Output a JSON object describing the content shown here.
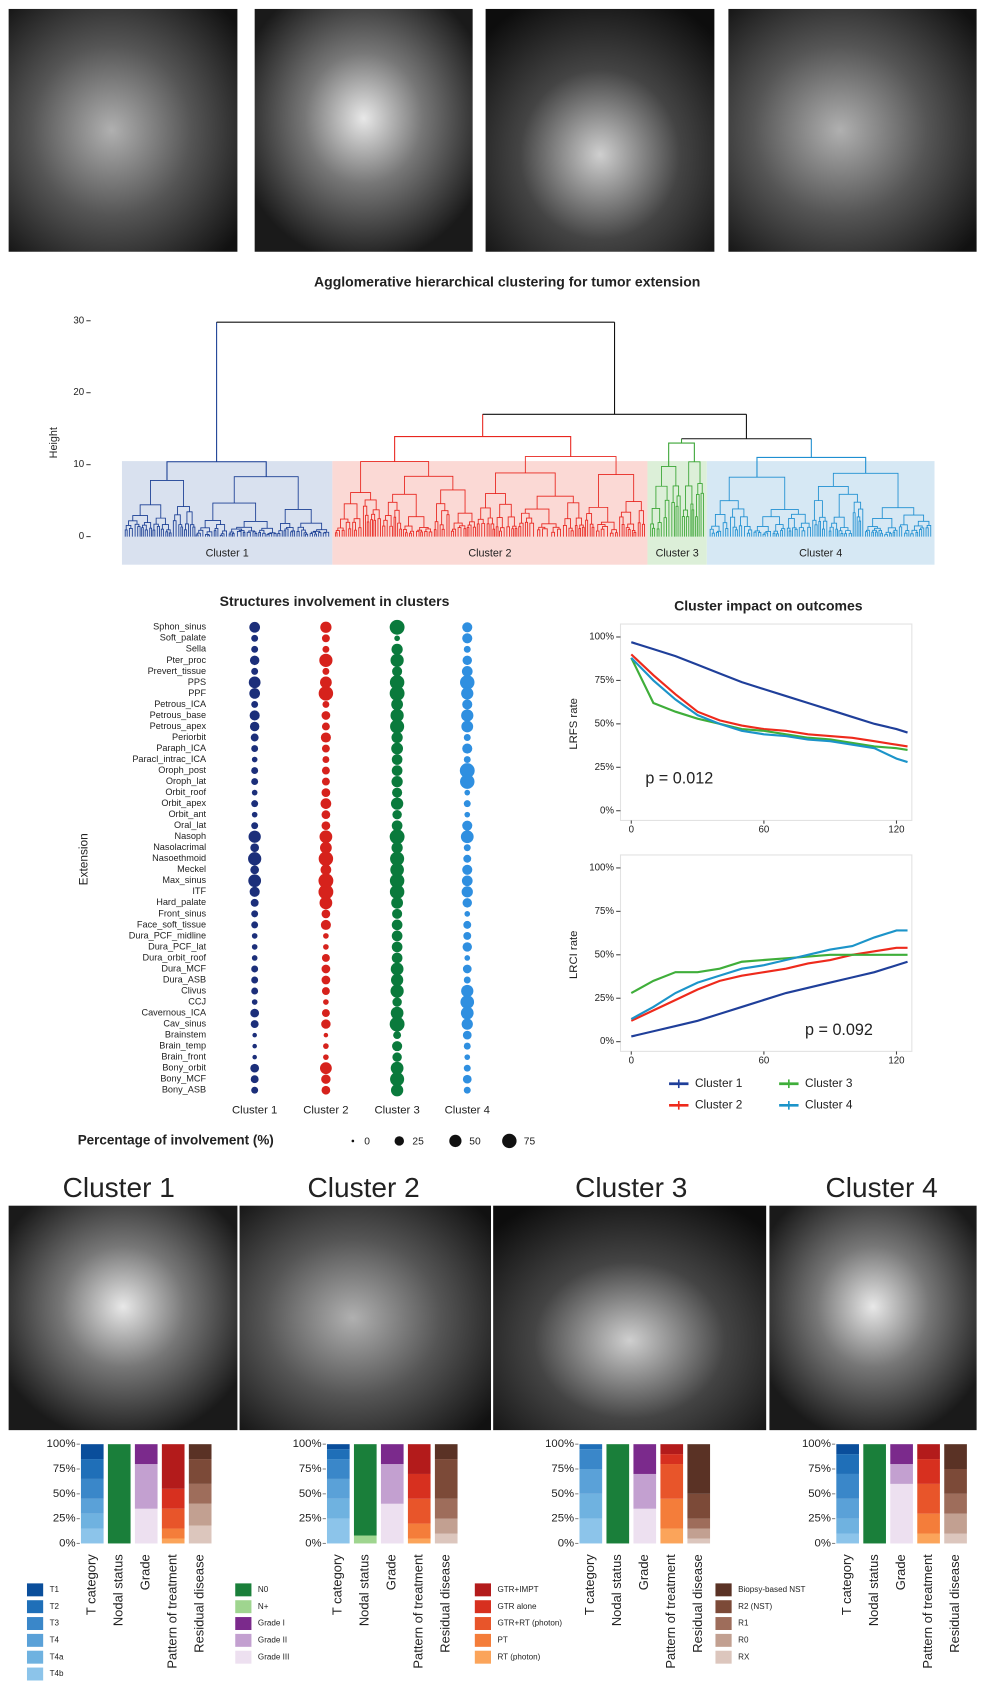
{
  "chart_data": [
    {
      "type": "dendrogram",
      "title": "Agglomerative hierarchical clustering for tumor extension",
      "ylabel": "Height",
      "ylim": [
        -2,
        32
      ],
      "yticks": [
        0,
        10,
        20,
        30
      ],
      "clusters": [
        {
          "name": "Cluster 1",
          "color": "#1b3f94",
          "band": "#d9e1ef",
          "height": 10.4
        },
        {
          "name": "Cluster 2",
          "color": "#e8261f",
          "band": "#fbd9d5",
          "height": 13.9
        },
        {
          "name": "Cluster 3",
          "color": "#3aa535",
          "band": "#dcefd8",
          "height": 13.0
        },
        {
          "name": "Cluster 4",
          "color": "#1f8fd1",
          "band": "#d6e8f4",
          "height": 11.0
        }
      ],
      "merges": [
        13.6,
        17.0,
        29.8
      ]
    },
    {
      "type": "dot",
      "title": "Structures involvement in clusters",
      "ylabel": "Extension",
      "categories": [
        "Sphon_sinus",
        "Soft_palate",
        "Sella",
        "Pter_proc",
        "Prevert_tissue",
        "PPS",
        "PPF",
        "Petrous_ICA",
        "Petrous_base",
        "Petrous_apex",
        "Periorbit",
        "Paraph_ICA",
        "Paracl_intrac_ICA",
        "Oroph_post",
        "Oroph_lat",
        "Orbit_roof",
        "Orbit_apex",
        "Orbit_ant",
        "Oral_lat",
        "Nasoph",
        "Nasolacrimal",
        "Nasoethmoid",
        "Meckel",
        "Max_sinus",
        "ITF",
        "Hard_palate",
        "Front_sinus",
        "Face_soft_tissue",
        "Dura_PCF_midline",
        "Dura_PCF_lat",
        "Dura_orbit_roof",
        "Dura_MCF",
        "Dura_ASB",
        "Clivus",
        "CCJ",
        "Cavernous_ICA",
        "Cav_sinus",
        "Brainstem",
        "Brain_temp",
        "Brain_front",
        "Bony_orbit",
        "Bony_MCF",
        "Bony_ASB"
      ],
      "series": [
        {
          "name": "Cluster 1",
          "color": "#1c2f7a",
          "values": [
            35,
            10,
            10,
            25,
            10,
            45,
            35,
            10,
            30,
            25,
            15,
            10,
            5,
            10,
            10,
            5,
            10,
            5,
            10,
            50,
            20,
            60,
            20,
            55,
            30,
            15,
            10,
            10,
            5,
            5,
            5,
            10,
            10,
            10,
            5,
            20,
            15,
            2,
            2,
            2,
            20,
            15,
            10
          ]
        },
        {
          "name": "Cluster 2",
          "color": "#d6221c",
          "values": [
            40,
            15,
            10,
            60,
            10,
            45,
            75,
            10,
            20,
            15,
            30,
            15,
            10,
            15,
            15,
            20,
            35,
            20,
            20,
            55,
            45,
            75,
            35,
            80,
            80,
            55,
            20,
            30,
            5,
            5,
            15,
            20,
            20,
            15,
            5,
            15,
            25,
            2,
            5,
            5,
            45,
            25,
            20
          ]
        },
        {
          "name": "Cluster 3",
          "color": "#0a7a3c",
          "values": [
            80,
            5,
            40,
            60,
            30,
            75,
            80,
            45,
            60,
            70,
            40,
            45,
            35,
            35,
            40,
            30,
            50,
            25,
            35,
            80,
            40,
            70,
            65,
            75,
            75,
            45,
            30,
            35,
            35,
            35,
            35,
            55,
            50,
            60,
            25,
            55,
            80,
            15,
            30,
            25,
            55,
            70,
            50
          ]
        },
        {
          "name": "Cluster 4",
          "color": "#2f8fe0",
          "values": [
            30,
            30,
            10,
            25,
            35,
            75,
            50,
            30,
            50,
            45,
            10,
            30,
            10,
            80,
            75,
            5,
            10,
            5,
            30,
            55,
            10,
            15,
            30,
            35,
            40,
            25,
            5,
            15,
            15,
            25,
            5,
            20,
            10,
            50,
            65,
            55,
            40,
            20,
            10,
            5,
            10,
            20,
            10
          ]
        }
      ],
      "size_legend": {
        "title": "Percentage of involvement (%)",
        "values": [
          0,
          25,
          50,
          75
        ]
      }
    },
    {
      "type": "line",
      "title": "Cluster impact on outcomes",
      "ylabel": "LRFS rate",
      "annotation": "p = 0.012",
      "x": [
        0,
        10,
        20,
        30,
        40,
        50,
        60,
        70,
        80,
        90,
        100,
        110,
        120,
        125
      ],
      "xlim": [
        0,
        125
      ],
      "xticks": [
        0,
        60,
        120
      ],
      "ylim": [
        0,
        100
      ],
      "yticks": [
        {
          "value": 0,
          "label": "0%"
        },
        {
          "value": 25,
          "label": "25%"
        },
        {
          "value": 50,
          "label": "50%"
        },
        {
          "value": 75,
          "label": "75%"
        },
        {
          "value": 100,
          "label": "100%"
        }
      ],
      "series": [
        {
          "color": "#1f3f9a",
          "values": [
            97,
            93,
            89,
            84,
            79,
            74,
            70,
            66,
            62,
            58,
            54,
            50,
            47,
            45
          ]
        },
        {
          "color": "#ee2a1c",
          "values": [
            90,
            78,
            67,
            57,
            52,
            49,
            47,
            46,
            44,
            43,
            42,
            40,
            38,
            37
          ]
        },
        {
          "color": "#3fae3a",
          "values": [
            88,
            62,
            57,
            53,
            50,
            47,
            46,
            44,
            42,
            41,
            39,
            37,
            36,
            35
          ]
        },
        {
          "color": "#1c94c9",
          "values": [
            88,
            75,
            64,
            55,
            50,
            46,
            44,
            43,
            41,
            40,
            38,
            36,
            30,
            28
          ]
        }
      ]
    },
    {
      "type": "line",
      "ylabel": "LRCI rate",
      "annotation": "p = 0.092",
      "legend": "bottom",
      "x": [
        0,
        10,
        20,
        30,
        40,
        50,
        60,
        70,
        80,
        90,
        100,
        110,
        120,
        125
      ],
      "xlim": [
        0,
        125
      ],
      "xticks": [
        0,
        60,
        120
      ],
      "ylim": [
        0,
        100
      ],
      "yticks": [
        {
          "value": 0,
          "label": "0%"
        },
        {
          "value": 25,
          "label": "25%"
        },
        {
          "value": 50,
          "label": "50%"
        },
        {
          "value": 75,
          "label": "75%"
        },
        {
          "value": 100,
          "label": "100%"
        }
      ],
      "series": [
        {
          "name": "Cluster 1",
          "color": "#1f3f9a",
          "values": [
            3,
            6,
            9,
            12,
            16,
            20,
            24,
            28,
            31,
            34,
            37,
            40,
            44,
            46
          ]
        },
        {
          "name": "Cluster 2",
          "color": "#ee2a1c",
          "values": [
            12,
            18,
            24,
            30,
            35,
            38,
            40,
            42,
            45,
            47,
            50,
            52,
            54,
            54
          ]
        },
        {
          "name": "Cluster 3",
          "color": "#3fae3a",
          "values": [
            28,
            35,
            40,
            40,
            42,
            46,
            47,
            48,
            49,
            50,
            50,
            50,
            50,
            50
          ]
        },
        {
          "name": "Cluster 4",
          "color": "#1c94c9",
          "values": [
            13,
            20,
            28,
            34,
            38,
            42,
            44,
            47,
            50,
            53,
            55,
            60,
            64,
            64
          ]
        }
      ]
    },
    {
      "type": "stacked-bar",
      "categories": [
        "T category",
        "Nodal status",
        "Grade",
        "Pattern of treatment",
        "Residual disease"
      ],
      "ylim": [
        0,
        100
      ],
      "yticks": [
        {
          "value": 0,
          "label": "0%"
        },
        {
          "value": 25,
          "label": "25%"
        },
        {
          "value": 50,
          "label": "50%"
        },
        {
          "value": 75,
          "label": "75%"
        },
        {
          "value": 100,
          "label": "100%"
        }
      ],
      "levels": [
        [
          {
            "name": "T1",
            "color": "#0a4e9b"
          },
          {
            "name": "T2",
            "color": "#1f6fb8"
          },
          {
            "name": "T3",
            "color": "#3a87c9"
          },
          {
            "name": "T4",
            "color": "#5aa1d8"
          },
          {
            "name": "T4a",
            "color": "#6fb2e0"
          },
          {
            "name": "T4b",
            "color": "#8cc4ea"
          }
        ],
        [
          {
            "name": "N0",
            "color": "#1a7f3a"
          },
          {
            "name": "N+",
            "color": "#9fd58f"
          }
        ],
        [
          {
            "name": "Grade I",
            "color": "#7b2a8c"
          },
          {
            "name": "Grade II",
            "color": "#c3a0d0"
          },
          {
            "name": "Grade III",
            "color": "#ede0f0"
          }
        ],
        [
          {
            "name": "GTR+IMPT",
            "color": "#b31b1b"
          },
          {
            "name": "GTR alone",
            "color": "#d7301f"
          },
          {
            "name": "GTR+RT (photon)",
            "color": "#e8552a"
          },
          {
            "name": "PT",
            "color": "#f47d3a"
          },
          {
            "name": "RT (photon)",
            "color": "#fba45a"
          }
        ],
        [
          {
            "name": "Biopsy-based NST",
            "color": "#5a3225"
          },
          {
            "name": "R2 (NST)",
            "color": "#7c4a38"
          },
          {
            "name": "R1",
            "color": "#9e6d5b"
          },
          {
            "name": "R0",
            "color": "#c2a091"
          },
          {
            "name": "RX",
            "color": "#dcc6bd"
          }
        ]
      ],
      "panels": [
        {
          "title": "Cluster 1",
          "values": [
            [
              15,
              20,
              20,
              15,
              15,
              15
            ],
            [
              100,
              0
            ],
            [
              20,
              45,
              35
            ],
            [
              45,
              20,
              20,
              10,
              5
            ],
            [
              15,
              25,
              20,
              22,
              18
            ]
          ]
        },
        {
          "title": "Cluster 2",
          "values": [
            [
              5,
              10,
              20,
              20,
              20,
              25
            ],
            [
              92,
              8
            ],
            [
              20,
              40,
              40
            ],
            [
              30,
              25,
              25,
              15,
              5
            ],
            [
              15,
              40,
              20,
              15,
              10
            ]
          ]
        },
        {
          "title": "Cluster 3",
          "values": [
            [
              0,
              5,
              20,
              25,
              25,
              25
            ],
            [
              100,
              0
            ],
            [
              30,
              35,
              35
            ],
            [
              10,
              10,
              35,
              30,
              15
            ],
            [
              50,
              25,
              10,
              10,
              5
            ]
          ]
        },
        {
          "title": "Cluster 4",
          "values": [
            [
              10,
              20,
              25,
              20,
              15,
              10
            ],
            [
              100,
              0
            ],
            [
              20,
              20,
              60
            ],
            [
              15,
              25,
              30,
              20,
              10
            ],
            [
              25,
              25,
              20,
              20,
              10
            ]
          ]
        }
      ]
    }
  ]
}
